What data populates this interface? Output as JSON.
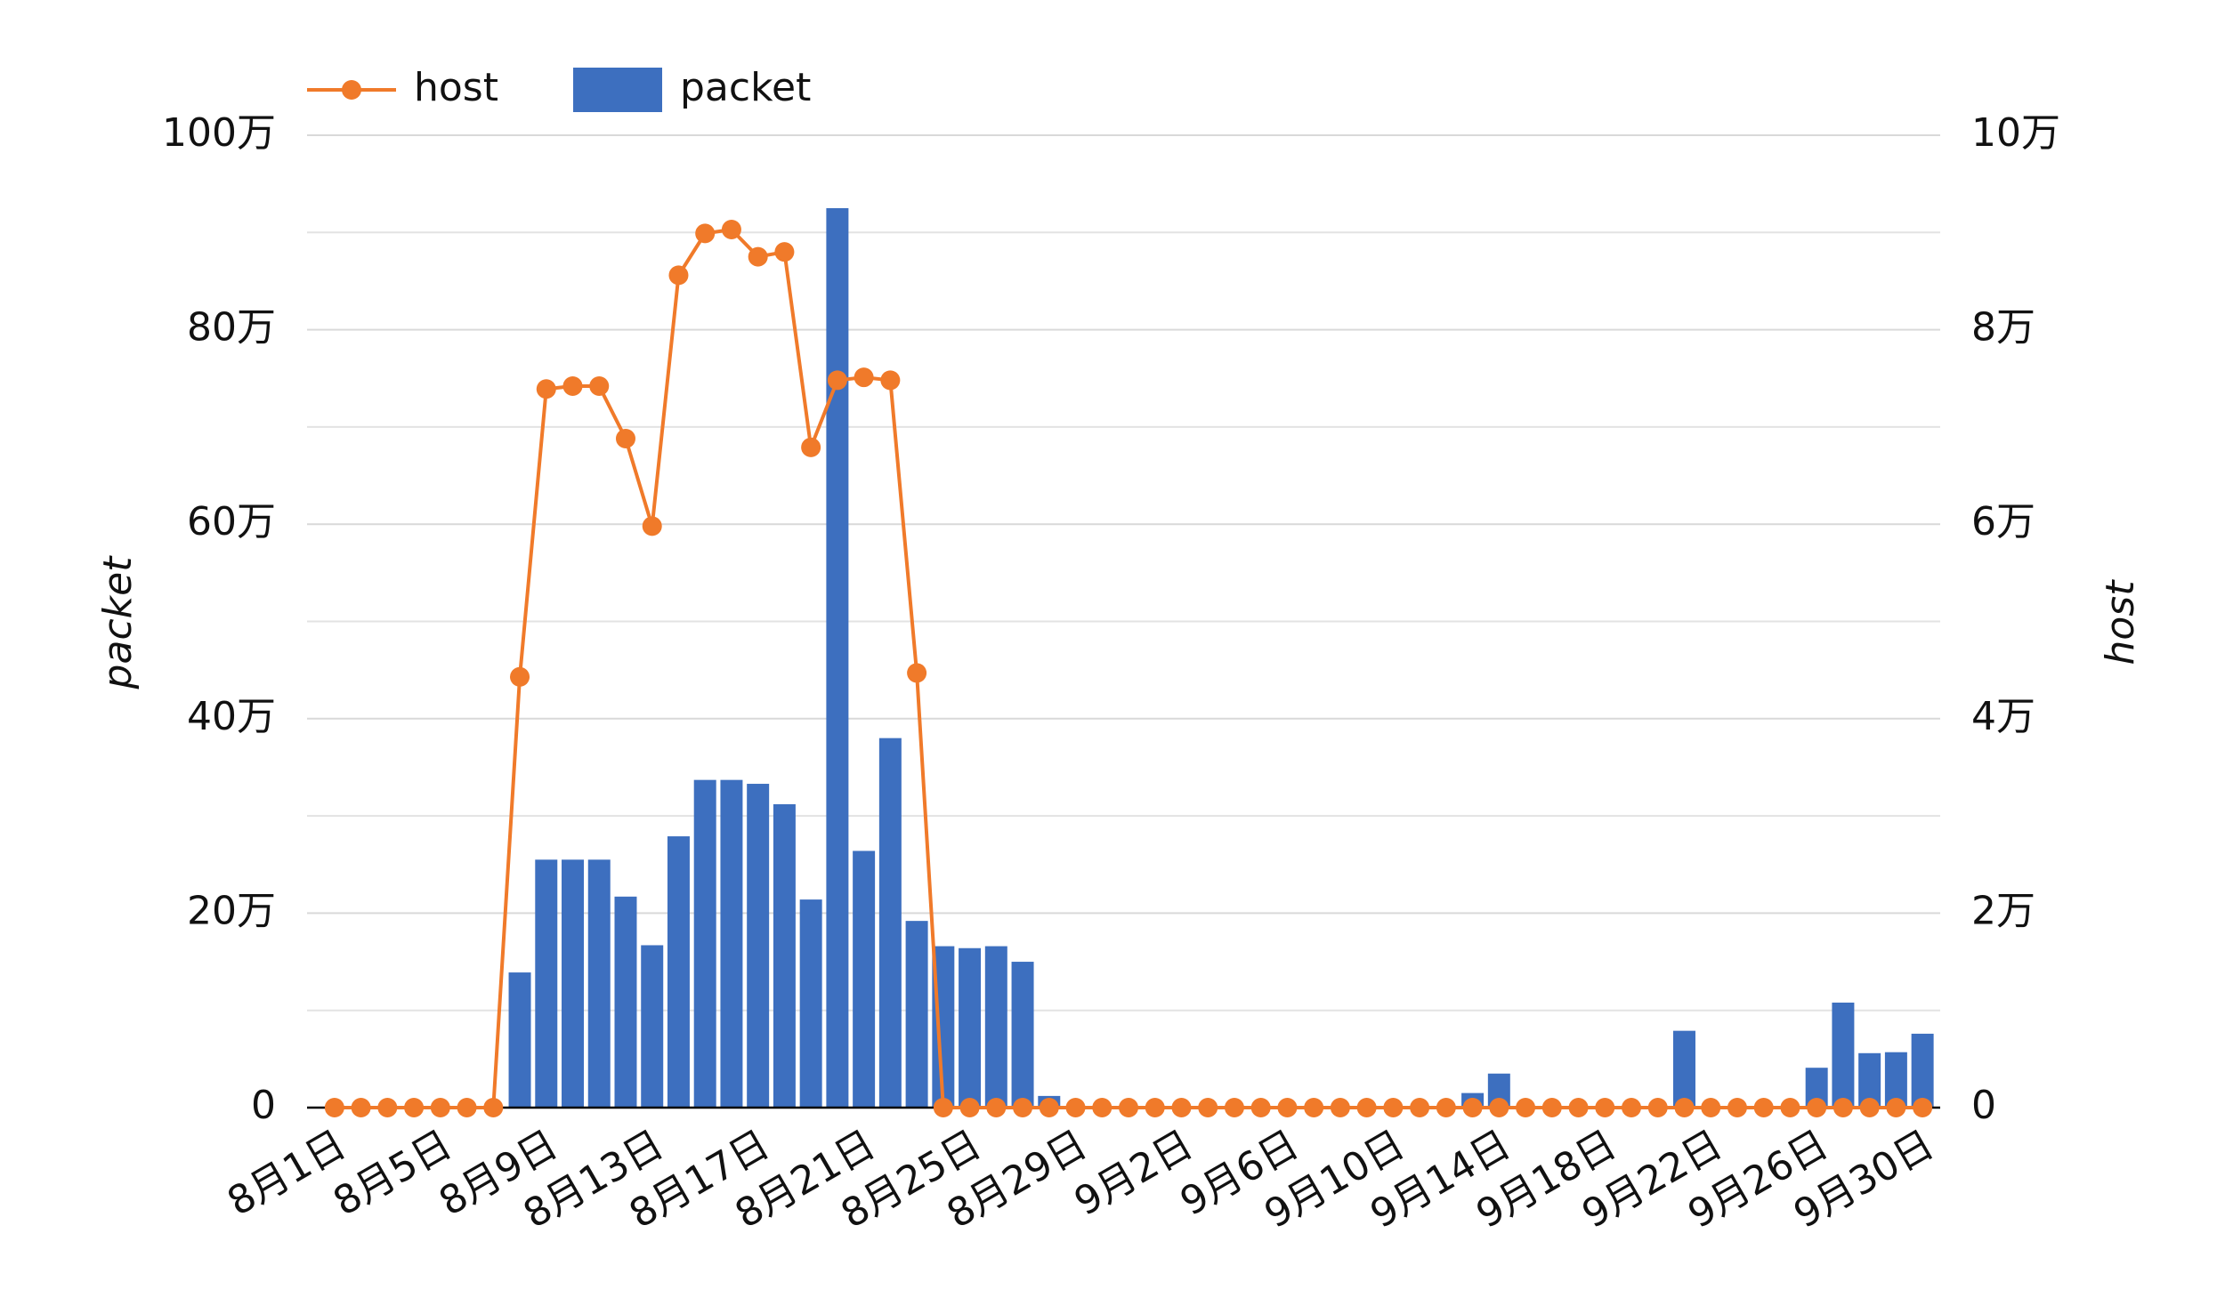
{
  "chart_data": {
    "type": "bar+line",
    "categories": [
      "8月1日",
      null,
      null,
      null,
      "8月5日",
      null,
      null,
      null,
      "8月9日",
      null,
      null,
      null,
      "8月13日",
      null,
      null,
      null,
      "8月17日",
      null,
      null,
      null,
      "8月21日",
      null,
      null,
      null,
      "8月25日",
      null,
      null,
      null,
      "8月29日",
      null,
      null,
      null,
      "9月2日",
      null,
      null,
      null,
      "9月6日",
      null,
      null,
      null,
      "9月10日",
      null,
      null,
      null,
      "9月14日",
      null,
      null,
      null,
      "9月18日",
      null,
      null,
      null,
      "9月22日",
      null,
      null,
      null,
      "9月26日",
      null,
      null,
      null,
      "9月30日"
    ],
    "series": [
      {
        "name": "packet",
        "type": "bar",
        "axis": "y",
        "color": "#3d6fbf",
        "values": [
          0,
          0,
          0,
          0,
          0,
          0,
          0,
          139000,
          255000,
          255000,
          255000,
          217000,
          167000,
          279000,
          337000,
          337000,
          333000,
          312000,
          214000,
          925000,
          264000,
          380000,
          192000,
          166000,
          164000,
          166000,
          150000,
          12000,
          0,
          0,
          0,
          0,
          0,
          0,
          0,
          0,
          0,
          0,
          0,
          0,
          0,
          0,
          0,
          15000,
          35000,
          0,
          0,
          0,
          0,
          0,
          0,
          79000,
          0,
          0,
          0,
          0,
          41000,
          108000,
          56000,
          57000,
          76000
        ]
      },
      {
        "name": "host",
        "type": "line",
        "axis": "y2",
        "color": "#f07a2a",
        "values": [
          0,
          0,
          0,
          0,
          0,
          0,
          0,
          44300,
          73900,
          74200,
          74200,
          68800,
          59800,
          85600,
          89900,
          90300,
          87500,
          88000,
          67900,
          74800,
          75100,
          74800,
          44700,
          0,
          0,
          0,
          0,
          0,
          0,
          0,
          0,
          0,
          0,
          0,
          0,
          0,
          0,
          0,
          0,
          0,
          0,
          0,
          0,
          0,
          0,
          0,
          0,
          0,
          0,
          0,
          0,
          0,
          0,
          0,
          0,
          0,
          0,
          0,
          0,
          0,
          0
        ]
      }
    ],
    "ylabel": "packet",
    "y2label": "host",
    "ylim": [
      0,
      1000000
    ],
    "yticks": [
      0,
      {
        "value": 200000,
        "label": "20万"
      },
      {
        "value": 400000,
        "label": "40万"
      },
      {
        "value": 600000,
        "label": "60万"
      },
      {
        "value": 800000,
        "label": "80万"
      },
      {
        "value": 1000000,
        "label": "100万"
      }
    ],
    "y_minor_ticks": [
      100000,
      300000,
      500000,
      700000,
      900000
    ],
    "y2lim": [
      0,
      100000
    ],
    "y2ticks": [
      0,
      {
        "value": 20000,
        "label": "2万"
      },
      {
        "value": 40000,
        "label": "4万"
      },
      {
        "value": 60000,
        "label": "6万"
      },
      {
        "value": 80000,
        "label": "8万"
      },
      {
        "value": 100000,
        "label": "10万"
      }
    ],
    "grid": true,
    "legend": "top-left"
  }
}
